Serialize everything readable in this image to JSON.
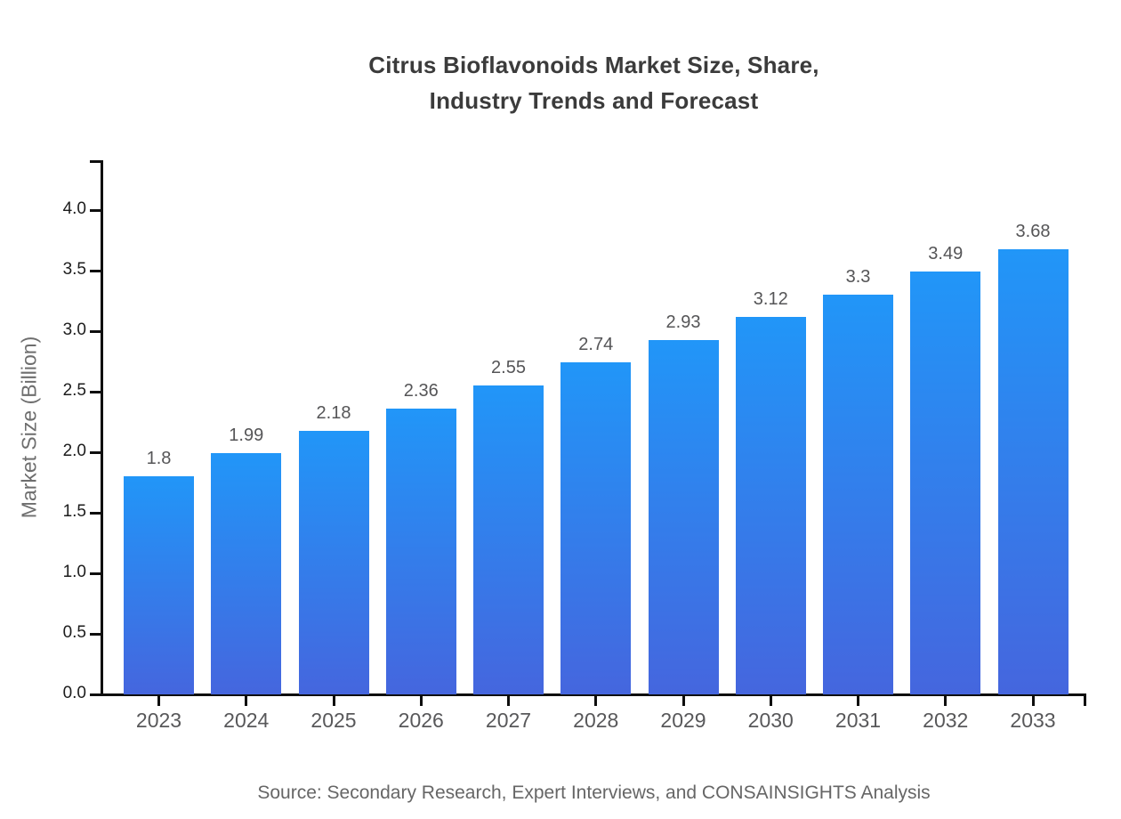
{
  "title_lines": [
    "Citrus Bioflavonoids Market Size, Share,",
    "Industry Trends and Forecast"
  ],
  "source": "Source: Secondary Research, Expert Interviews, and CONSAINSIGHTS Analysis",
  "colors": {
    "bar_gradient_top": "#2196F8",
    "bar_gradient_bottom": "#4566DE",
    "axis": "#0E0E0E",
    "title_text": "#3B3B3B",
    "y_tick_text": "#1C1C1C",
    "x_tick_text": "#58585A",
    "value_label_text": "#555557",
    "axis_title_text": "#6E6E6E",
    "source_text": "#666666"
  },
  "chart_data": {
    "type": "bar",
    "title": "Citrus Bioflavonoids Market Size, Share, Industry Trends and Forecast",
    "categories": [
      "2023",
      "2024",
      "2025",
      "2026",
      "2027",
      "2028",
      "2029",
      "2030",
      "2031",
      "2032",
      "2033"
    ],
    "values": [
      1.8,
      1.99,
      2.18,
      2.36,
      2.55,
      2.74,
      2.93,
      3.12,
      3.3,
      3.49,
      3.68
    ],
    "value_labels": [
      "1.8",
      "1.99",
      "2.18",
      "2.36",
      "2.55",
      "2.74",
      "2.93",
      "3.12",
      "3.3",
      "3.49",
      "3.68"
    ],
    "xlabel": "",
    "ylabel": "Market Size (Billion)",
    "ylim": [
      0,
      4.4
    ],
    "y_ticks": [
      0.0,
      0.5,
      1.0,
      1.5,
      2.0,
      2.5,
      3.0,
      3.5,
      4.0
    ],
    "grid": false,
    "legend": null,
    "bar_orientation": "vertical",
    "source_note": "Source: Secondary Research, Expert Interviews, and CONSAINSIGHTS Analysis"
  }
}
